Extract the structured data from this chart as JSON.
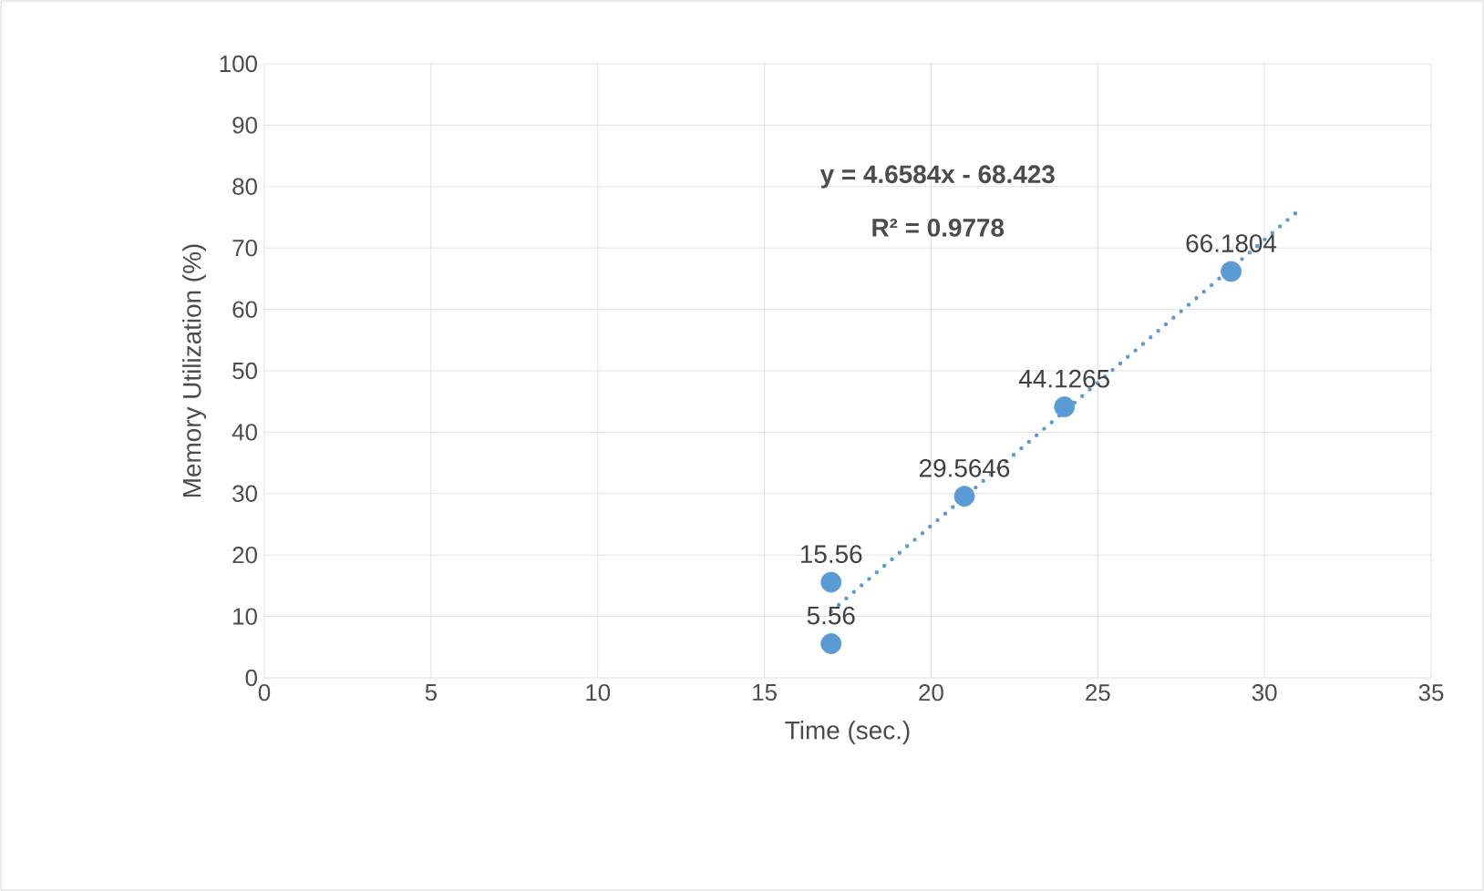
{
  "chart_data": {
    "type": "scatter",
    "xlabel": "Time (sec.)",
    "ylabel": "Memory Utilization (%)",
    "xlim": [
      0,
      35
    ],
    "xticks": [
      0,
      5,
      10,
      15,
      20,
      25,
      30,
      35
    ],
    "ylim": [
      0,
      100
    ],
    "yticks": [
      0,
      10,
      20,
      30,
      40,
      50,
      60,
      70,
      80,
      90,
      100
    ],
    "grid": true,
    "series": [
      {
        "color": "#5b9bd5",
        "marker": "circle",
        "x": [
          17,
          17,
          21,
          24,
          29
        ],
        "values": [
          5.56,
          15.56,
          29.5646,
          44.1265,
          66.1804
        ],
        "value_labels": [
          "5.56",
          "15.56",
          "29.5646",
          "44.1265",
          "66.1804"
        ]
      },
      {
        "type": "line",
        "color": "#5b9bd5",
        "line_style": "dotted",
        "marker": "none",
        "x": [
          17,
          31
        ],
        "values": [
          10.8,
          76.0
        ]
      }
    ],
    "annotations": [
      "y = 4.6584x - 68.423",
      "R² = 0.9778"
    ]
  }
}
